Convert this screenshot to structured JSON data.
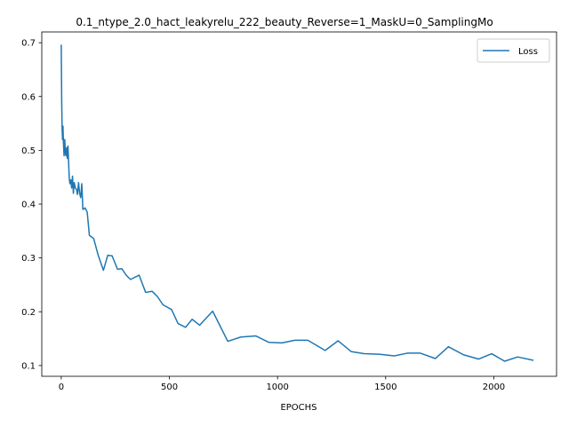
{
  "chart_data": {
    "type": "line",
    "title": "0.1_ntype_2.0_hact_leakyrelu_222_beauty_Reverse=1_MaskU=0_SamplingMo",
    "xlabel": "EPOCHS",
    "ylabel": "",
    "xlim": [
      -90,
      2290
    ],
    "ylim": [
      0.08,
      0.72
    ],
    "xticks": [
      0,
      500,
      1000,
      1500,
      2000
    ],
    "yticks": [
      0.1,
      0.2,
      0.3,
      0.4,
      0.5,
      0.6,
      0.7
    ],
    "grid": false,
    "legend_position": "top-right",
    "colors": {
      "series": "#1f77b4"
    },
    "series": [
      {
        "name": "Loss",
        "x": [
          0,
          2,
          4,
          6,
          8,
          10,
          13,
          16,
          19,
          22,
          25,
          28,
          31,
          34,
          37,
          40,
          44,
          48,
          52,
          56,
          60,
          65,
          70,
          75,
          80,
          85,
          90,
          95,
          100,
          110,
          120,
          130,
          150,
          170,
          195,
          215,
          235,
          260,
          280,
          300,
          320,
          360,
          390,
          420,
          445,
          470,
          510,
          540,
          575,
          605,
          640,
          700,
          770,
          830,
          900,
          960,
          1020,
          1080,
          1140,
          1220,
          1280,
          1340,
          1400,
          1470,
          1540,
          1600,
          1660,
          1730,
          1790,
          1860,
          1930,
          1990,
          2050,
          2110,
          2180
        ],
        "y": [
          0.695,
          0.595,
          0.54,
          0.52,
          0.545,
          0.515,
          0.49,
          0.52,
          0.495,
          0.49,
          0.505,
          0.485,
          0.508,
          0.478,
          0.448,
          0.438,
          0.445,
          0.43,
          0.452,
          0.42,
          0.44,
          0.43,
          0.428,
          0.418,
          0.44,
          0.42,
          0.412,
          0.438,
          0.39,
          0.393,
          0.385,
          0.342,
          0.336,
          0.306,
          0.277,
          0.305,
          0.304,
          0.279,
          0.28,
          0.268,
          0.26,
          0.268,
          0.236,
          0.238,
          0.228,
          0.213,
          0.204,
          0.178,
          0.171,
          0.186,
          0.175,
          0.201,
          0.145,
          0.153,
          0.155,
          0.143,
          0.142,
          0.147,
          0.147,
          0.128,
          0.146,
          0.126,
          0.122,
          0.121,
          0.118,
          0.123,
          0.123,
          0.113,
          0.135,
          0.12,
          0.112,
          0.122,
          0.108,
          0.116,
          0.11
        ]
      }
    ]
  }
}
